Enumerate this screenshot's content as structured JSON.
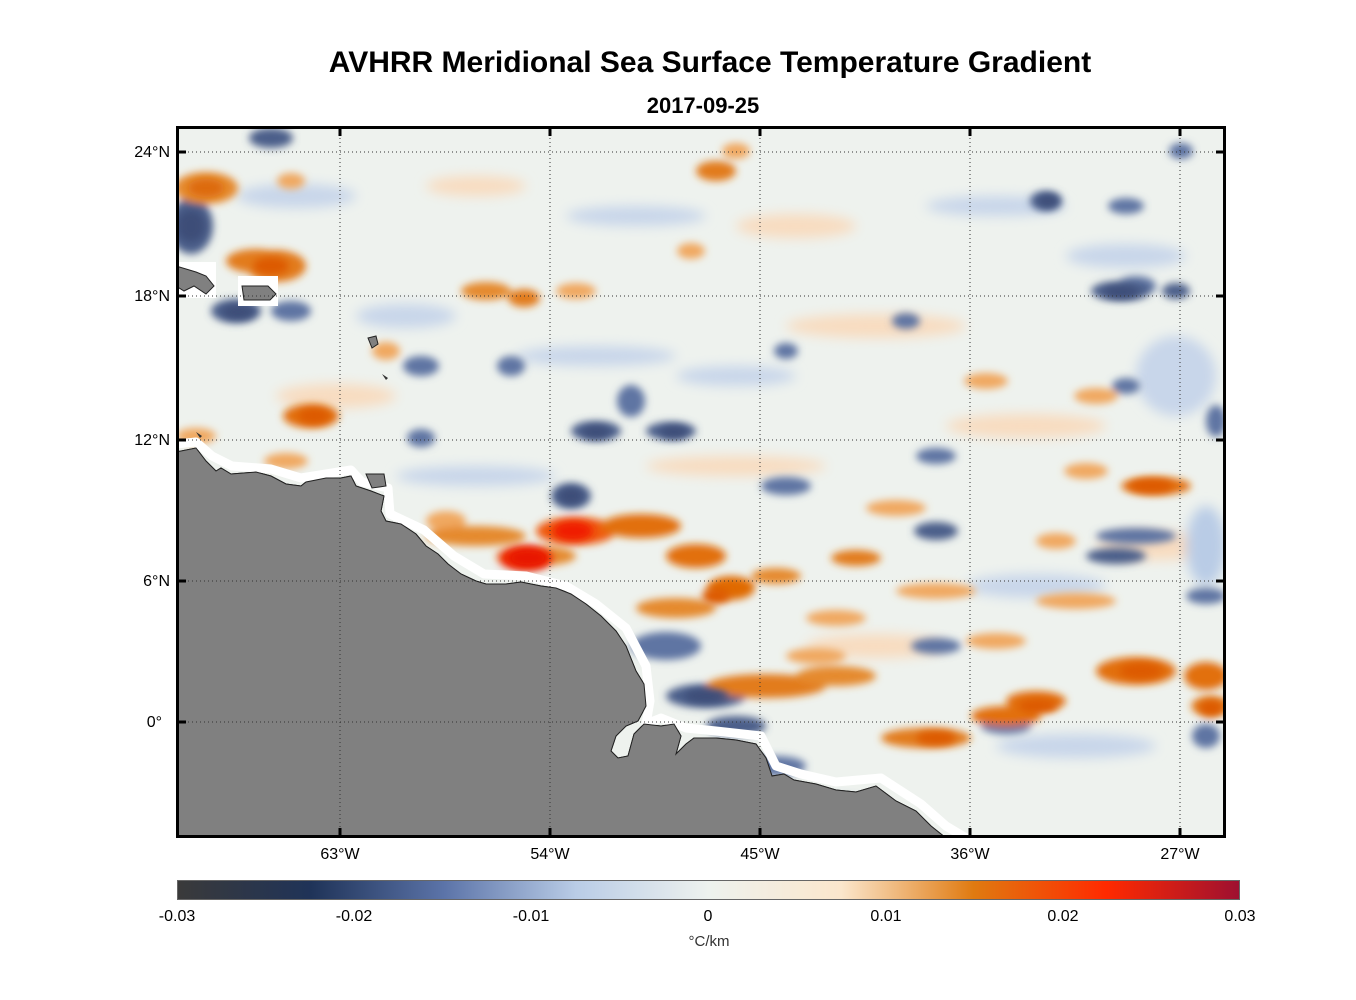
{
  "title": "AVHRR Meridional Sea Surface Temperature Gradient",
  "subtitle": "2017-09-25",
  "map": {
    "lat_ticks": [
      "24°N",
      "18°N",
      "12°N",
      "6°N",
      "0°"
    ],
    "lon_ticks": [
      "63°W",
      "54°W",
      "45°W",
      "36°W",
      "27°W"
    ],
    "land_color": "#808080",
    "grid": "dotted"
  },
  "colorbar": {
    "ticks": [
      "-0.03",
      "-0.02",
      "-0.01",
      "0",
      "0.01",
      "0.02",
      "0.03"
    ],
    "unit": "°C/km",
    "colors": [
      "#3a3a3a",
      "#1f3358",
      "#5b73a8",
      "#b9cce6",
      "#eef2ee",
      "#fbe6cc",
      "#e07a10",
      "#ff2a00",
      "#9e1030"
    ]
  }
}
